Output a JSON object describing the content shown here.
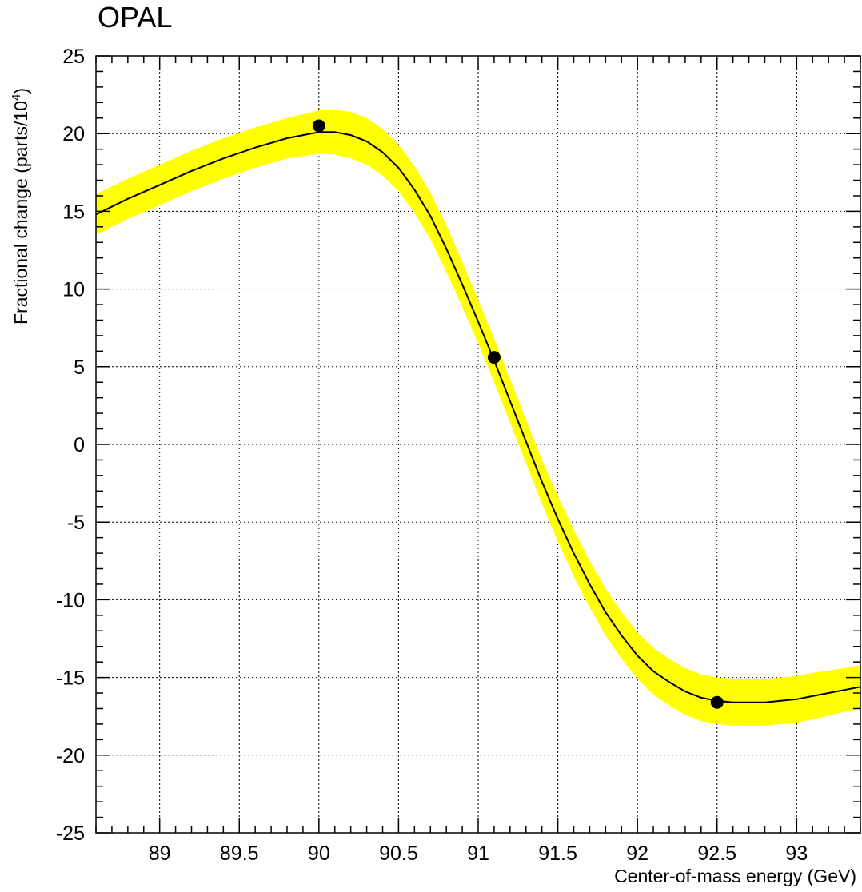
{
  "chart_data": {
    "type": "line",
    "title": "OPAL",
    "xlabel": "Center-of-mass energy (GeV)",
    "ylabel": "Fractional change (parts/10",
    "ylabel_sup": "4",
    "ylabel_end": ")",
    "xlim": [
      88.6,
      93.4
    ],
    "ylim": [
      -25,
      25
    ],
    "x_ticks": [
      89,
      89.5,
      90,
      90.5,
      91,
      91.5,
      92,
      92.5,
      93
    ],
    "x_tick_labels": [
      "89",
      "89.5",
      "90",
      "90.5",
      "91",
      "91.5",
      "92",
      "92.5",
      "93"
    ],
    "y_ticks": [
      25,
      20,
      15,
      10,
      5,
      0,
      -5,
      -10,
      -15,
      -20,
      -25
    ],
    "y_tick_labels": [
      "25",
      "20",
      "15",
      "10",
      "5",
      "0",
      "-5",
      "-10",
      "-15",
      "-20",
      "-25"
    ],
    "grid": true,
    "curve": {
      "x": [
        88.6,
        88.8,
        89.0,
        89.2,
        89.4,
        89.6,
        89.8,
        90.0,
        90.1,
        90.2,
        90.3,
        90.4,
        90.5,
        90.6,
        90.7,
        90.8,
        90.9,
        91.0,
        91.1,
        91.2,
        91.3,
        91.4,
        91.5,
        91.6,
        91.7,
        91.8,
        91.9,
        92.0,
        92.1,
        92.2,
        92.3,
        92.4,
        92.5,
        92.6,
        92.7,
        92.8,
        92.9,
        93.0,
        93.1,
        93.2,
        93.3,
        93.4
      ],
      "y": [
        14.8,
        15.8,
        16.7,
        17.6,
        18.4,
        19.1,
        19.7,
        20.1,
        20.1,
        19.9,
        19.5,
        18.8,
        17.8,
        16.4,
        14.7,
        12.6,
        10.3,
        7.9,
        5.4,
        2.8,
        0.2,
        -2.4,
        -4.8,
        -7.0,
        -9.0,
        -10.8,
        -12.3,
        -13.6,
        -14.6,
        -15.3,
        -15.9,
        -16.3,
        -16.5,
        -16.6,
        -16.6,
        -16.6,
        -16.5,
        -16.4,
        -16.2,
        -16.0,
        -15.8,
        -15.6
      ]
    },
    "band_half_width": [
      1.3,
      1.3,
      1.3,
      1.3,
      1.3,
      1.3,
      1.3,
      1.4,
      1.45,
      1.5,
      1.5,
      1.5,
      1.5,
      1.5,
      1.5,
      1.5,
      1.45,
      1.4,
      1.4,
      1.4,
      1.4,
      1.4,
      1.45,
      1.5,
      1.5,
      1.5,
      1.5,
      1.5,
      1.5,
      1.5,
      1.5,
      1.5,
      1.5,
      1.5,
      1.5,
      1.5,
      1.5,
      1.5,
      1.5,
      1.45,
      1.4,
      1.4
    ],
    "points": [
      {
        "x": 90.0,
        "y": 20.5
      },
      {
        "x": 91.1,
        "y": 5.6
      },
      {
        "x": 92.5,
        "y": -16.6
      }
    ],
    "colors": {
      "band": "#ffff00",
      "curve": "#000000",
      "points": "#000000",
      "grid": "#000000",
      "frame": "#000000"
    }
  }
}
